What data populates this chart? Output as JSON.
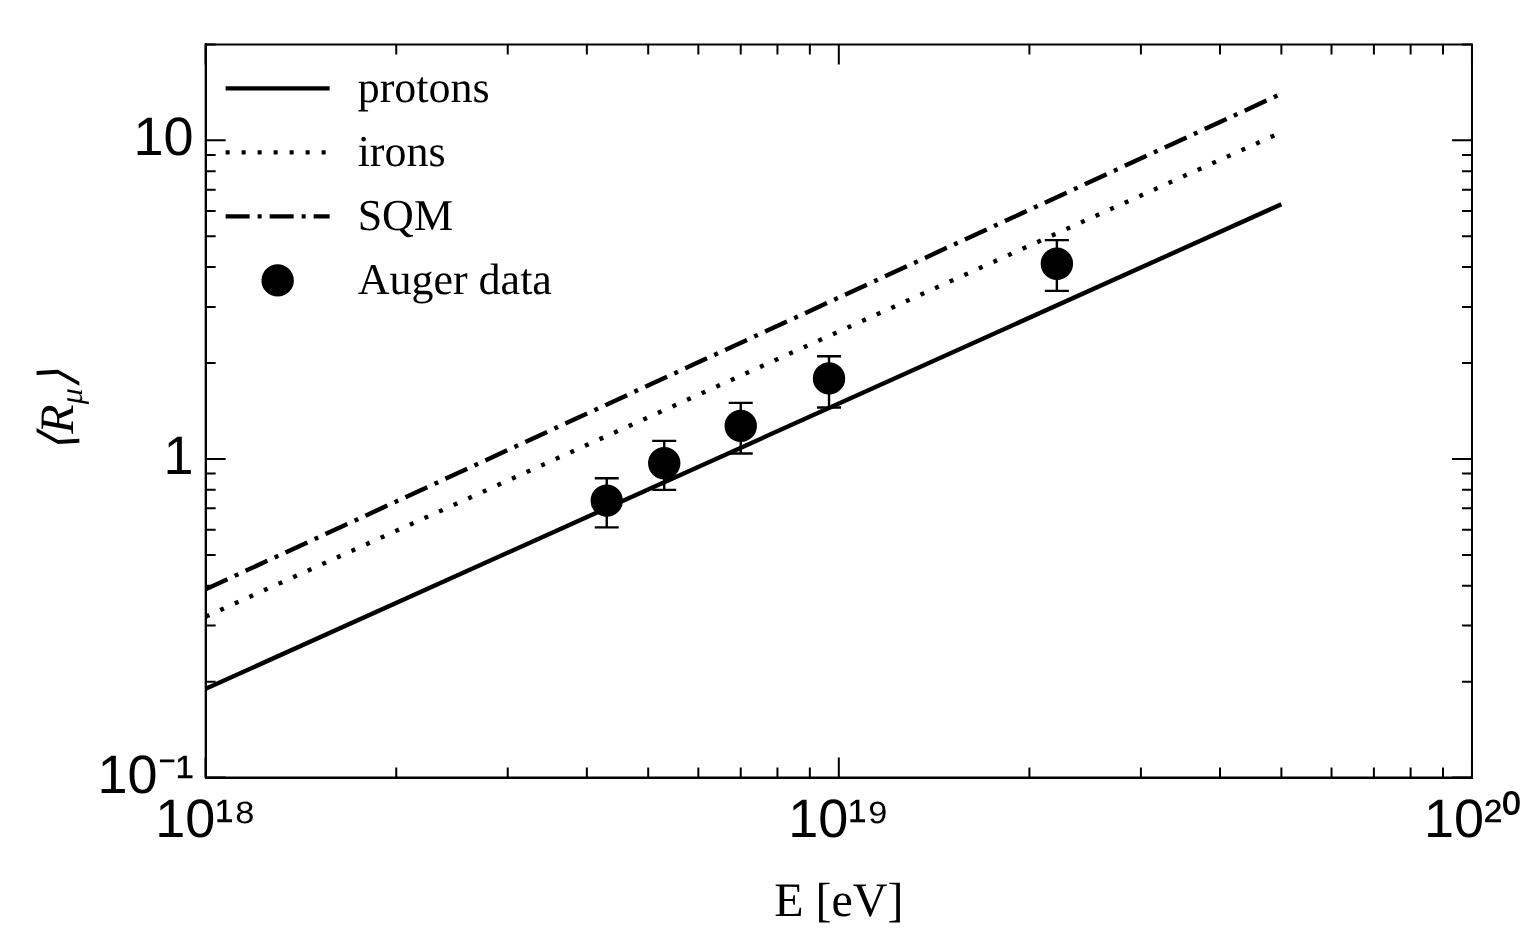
{
  "chart_data": {
    "type": "line",
    "xlabel": "E [eV]",
    "ylabel": "⟨R$_{μ}$⟩",
    "log": "xy",
    "grid": false,
    "legend": "top left",
    "xlim": [
      1e+18,
      1e+20
    ],
    "xticks": [
      {
        "value": 1e+18,
        "label": "10¹⁸"
      },
      {
        "value": 2e+18,
        "label": null
      },
      {
        "value": 3e+18,
        "label": null
      },
      {
        "value": 4e+18,
        "label": null
      },
      {
        "value": 5e+18,
        "label": null
      },
      {
        "value": 6e+18,
        "label": null
      },
      {
        "value": 7e+18,
        "label": null
      },
      {
        "value": 8e+18,
        "label": null
      },
      {
        "value": 9e+18,
        "label": null
      },
      {
        "value": 1e+19,
        "label": "10¹⁹"
      },
      {
        "value": 2e+19,
        "label": null
      },
      {
        "value": 3e+19,
        "label": null
      },
      {
        "value": 4e+19,
        "label": null
      },
      {
        "value": 5e+19,
        "label": null
      },
      {
        "value": 6e+19,
        "label": null
      },
      {
        "value": 7e+19,
        "label": null
      },
      {
        "value": 8e+19,
        "label": null
      },
      {
        "value": 9e+19,
        "label": null
      },
      {
        "value": 1e+20,
        "label": "10²⁰"
      }
    ],
    "ylim": [
      0.1,
      20
    ],
    "yticks": [
      {
        "value": 0.1,
        "label": "10⁻¹"
      },
      {
        "value": 0.2,
        "label": null
      },
      {
        "value": 0.3,
        "label": null
      },
      {
        "value": 0.4,
        "label": null
      },
      {
        "value": 0.5,
        "label": null
      },
      {
        "value": 0.6,
        "label": null
      },
      {
        "value": 0.7,
        "label": null
      },
      {
        "value": 0.8,
        "label": null
      },
      {
        "value": 0.9,
        "label": null
      },
      {
        "value": 1,
        "label": "1"
      },
      {
        "value": 2,
        "label": null
      },
      {
        "value": 3,
        "label": null
      },
      {
        "value": 4,
        "label": null
      },
      {
        "value": 5,
        "label": null
      },
      {
        "value": 6,
        "label": null
      },
      {
        "value": 7,
        "label": null
      },
      {
        "value": 8,
        "label": null
      },
      {
        "value": 9,
        "label": null
      },
      {
        "value": 10,
        "label": "10"
      },
      {
        "value": 20,
        "label": null
      }
    ],
    "series": [
      {
        "name": "protons",
        "type": "line",
        "color": "#000000",
        "line_style": "solid",
        "marker": "none",
        "x": [
          1e+18,
          5e+19
        ],
        "values": [
          0.19,
          6.3
        ]
      },
      {
        "name": "irons",
        "type": "line",
        "color": "#000000",
        "line_style": "dotted",
        "marker": "none",
        "x": [
          1e+18,
          5e+19
        ],
        "values": [
          0.32,
          10.6
        ]
      },
      {
        "name": "SQM",
        "type": "line",
        "color": "#000000",
        "line_style": "dashdot",
        "marker": "none",
        "x": [
          1e+18,
          5e+19
        ],
        "values": [
          0.39,
          14
        ]
      },
      {
        "name": "Auger data",
        "type": "scatter",
        "color": "#000000",
        "marker": "circle",
        "x": [
          4.3e+18,
          5.3e+18,
          7e+18,
          9.65e+18,
          2.21e+19
        ],
        "values": [
          0.74,
          0.97,
          1.27,
          1.79,
          4.1
        ],
        "errors": [
          [
            0.61,
            0.87
          ],
          [
            0.8,
            1.14
          ],
          [
            1.04,
            1.5
          ],
          [
            1.45,
            2.1
          ],
          [
            3.37,
            4.86
          ]
        ]
      }
    ]
  }
}
